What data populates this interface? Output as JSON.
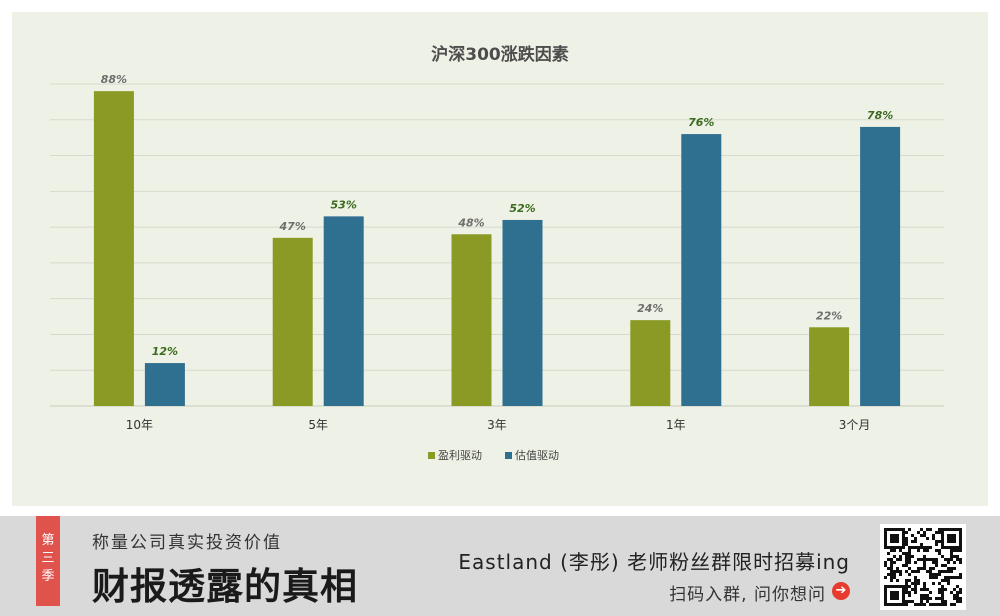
{
  "chart_data": {
    "type": "bar",
    "title": "沪深300涨跌因素",
    "categories": [
      "10年",
      "5年",
      "3年",
      "1年",
      "3个月"
    ],
    "series": [
      {
        "name": "盈利驱动",
        "values": [
          88,
          47,
          48,
          24,
          22
        ],
        "labels": [
          "88%",
          "47%",
          "48%",
          "24%",
          "22%"
        ],
        "color": "#8a9a25",
        "label_color": "#6e6e6e"
      },
      {
        "name": "估值驱动",
        "values": [
          12,
          53,
          52,
          76,
          78
        ],
        "labels": [
          "12%",
          "53%",
          "52%",
          "76%",
          "78%"
        ],
        "color": "#2f6f8f",
        "label_color": "#3c6b1f"
      }
    ],
    "ylim": [
      0,
      90
    ],
    "grid": true,
    "legend_position": "bottom"
  },
  "banner": {
    "season_chars": [
      "第",
      "三",
      "季"
    ],
    "subtitle": "称量公司真实投资价值",
    "title": "财报透露的真相",
    "invite": "Eastland (李彤) 老师粉丝群限时招募ing",
    "scan_text": "扫码入群, 问你想问",
    "arrow_glyph": "➔",
    "accent": "#e0534c"
  }
}
